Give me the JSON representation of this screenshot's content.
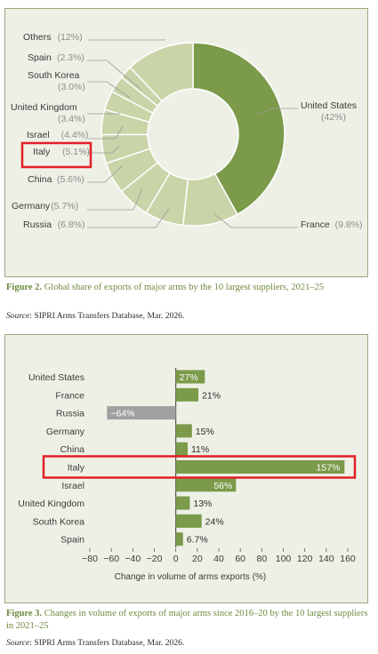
{
  "colors": {
    "us_slice": "#7b9a4a",
    "other_slices": "#c9d4a8",
    "slice_stroke": "#ffffff",
    "bar_positive": "#7b9a4a",
    "bar_negative": "#a0a0a0",
    "highlight": "#e21f26",
    "leader_line": "#999999",
    "label_text": "#3a3a3a",
    "pct_text": "#8c8c8c",
    "caption": "#6e8a3f"
  },
  "figure2": {
    "caption_label": "Figure 2.",
    "caption_text": "Global share of exports of major arms by the 10 largest suppliers, 2021–25",
    "source_label": "Source",
    "source_text": ": SIPRI Arms Transfers Database, Mar. 2026.",
    "highlighted": "Italy"
  },
  "figure3": {
    "caption_label": "Figure 3.",
    "caption_text": "Changes in volume of exports of major arms since 2016–20 by the 10 largest suppliers in 2021–25",
    "source_label": "Source",
    "source_text": ": SIPRI Arms Transfers Database, Mar. 2026.",
    "highlighted": "Italy"
  },
  "chart_data": [
    {
      "type": "pie",
      "style": "donut",
      "title": "",
      "slices": [
        {
          "label": "United States",
          "value": 42,
          "value_label": "(42%)"
        },
        {
          "label": "France",
          "value": 9.8,
          "value_label": "(9.8%)"
        },
        {
          "label": "Russia",
          "value": 6.8,
          "value_label": "(6.8%)"
        },
        {
          "label": "Germany",
          "value": 5.7,
          "value_label": "(5.7%)"
        },
        {
          "label": "China",
          "value": 5.6,
          "value_label": "(5.6%)"
        },
        {
          "label": "Italy",
          "value": 5.1,
          "value_label": "(5.1%)"
        },
        {
          "label": "Israel",
          "value": 4.4,
          "value_label": "(4.4%)"
        },
        {
          "label": "United Kingdom",
          "value": 3.4,
          "value_label": "(3.4%)"
        },
        {
          "label": "South Korea",
          "value": 3.0,
          "value_label": "(3.0%)"
        },
        {
          "label": "Spain",
          "value": 2.3,
          "value_label": "(2.3%)"
        },
        {
          "label": "Others",
          "value": 12,
          "value_label": "(12%)"
        }
      ]
    },
    {
      "type": "bar",
      "orientation": "horizontal",
      "categories": [
        "United States",
        "France",
        "Russia",
        "Germany",
        "China",
        "Italy",
        "Israel",
        "United Kingdom",
        "South Korea",
        "Spain"
      ],
      "values": [
        27,
        21,
        -64,
        15,
        11,
        157,
        56,
        13,
        24,
        6.7
      ],
      "value_labels": [
        "27%",
        "21%",
        "−64%",
        "15%",
        "11%",
        "157%",
        "56%",
        "13%",
        "24%",
        "6.7%"
      ],
      "xlabel": "Change in volume of arms exports (%)",
      "xlim": [
        -80,
        160
      ],
      "xticks": [
        -80,
        -60,
        -40,
        -20,
        0,
        20,
        40,
        60,
        80,
        100,
        120,
        140,
        160
      ],
      "xtick_labels": [
        "−80",
        "−60",
        "−40",
        "−20",
        "0",
        "20",
        "40",
        "60",
        "80",
        "100",
        "120",
        "140",
        "160"
      ],
      "grid": false
    }
  ]
}
